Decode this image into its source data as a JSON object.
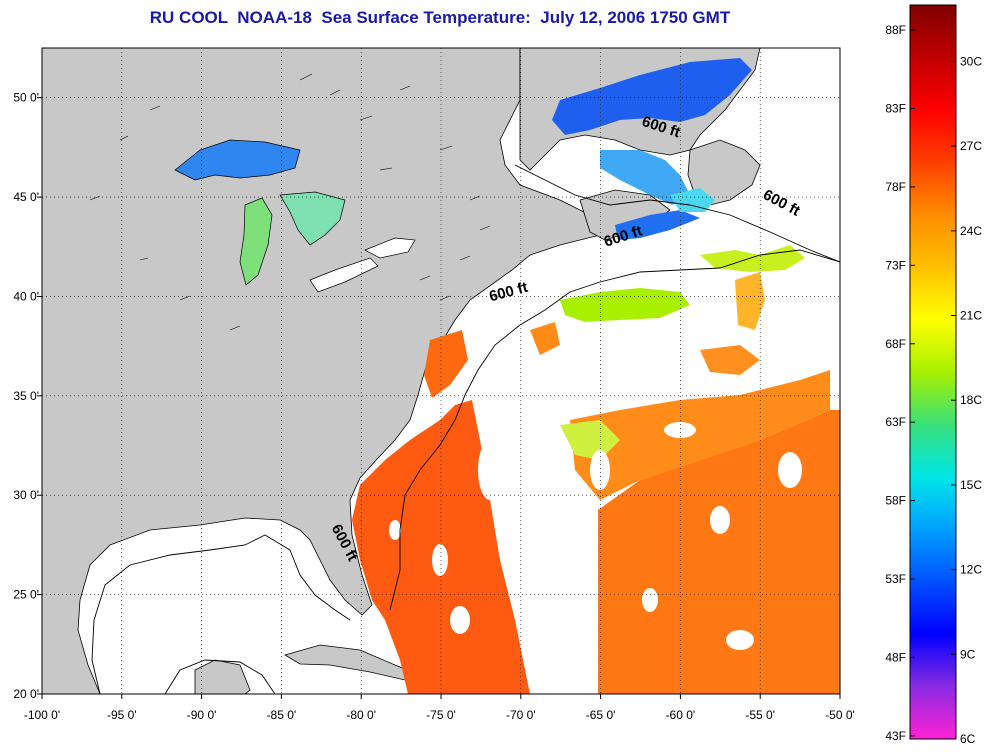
{
  "title": "RU COOL  NOAA-18  Sea Surface Temperature:  July 12, 2006 1750 GMT",
  "map": {
    "lon_range": [
      -100,
      -50
    ],
    "lat_range": [
      20,
      52.5
    ],
    "lon_ticks": [
      {
        "value": -100,
        "label": "-100 0'"
      },
      {
        "value": -95,
        "label": "-95 0'"
      },
      {
        "value": -90,
        "label": "-90 0'"
      },
      {
        "value": -85,
        "label": "-85 0'"
      },
      {
        "value": -80,
        "label": "-80 0'"
      },
      {
        "value": -75,
        "label": "-75 0'"
      },
      {
        "value": -70,
        "label": "-70 0'"
      },
      {
        "value": -65,
        "label": "-65 0'"
      },
      {
        "value": -60,
        "label": "-60 0'"
      },
      {
        "value": -55,
        "label": "-55 0'"
      },
      {
        "value": -50,
        "label": "-50 0'"
      }
    ],
    "lat_ticks": [
      {
        "value": 20,
        "label": "20 0'"
      },
      {
        "value": 25,
        "label": "25 0'"
      },
      {
        "value": 30,
        "label": "30 0'"
      },
      {
        "value": 35,
        "label": "35 0'"
      },
      {
        "value": 40,
        "label": "40 0'"
      },
      {
        "value": 45,
        "label": "45 0'"
      },
      {
        "value": 50,
        "label": "50 0'"
      }
    ],
    "grid": "dotted",
    "land_color": "#c8c8c8",
    "no_data_color": "#ffffff",
    "contour_labels": [
      {
        "text": "600 ft",
        "lon": -61.3,
        "lat": 48.3,
        "rotate": 18
      },
      {
        "text": "600 ft",
        "lon": -53.8,
        "lat": 44.5,
        "rotate": 28
      },
      {
        "text": "600 ft",
        "lon": -63.5,
        "lat": 42.8,
        "rotate": -18
      },
      {
        "text": "600 ft",
        "lon": -70.7,
        "lat": 40.0,
        "rotate": -15
      },
      {
        "text": "600 ft",
        "lon": -81.3,
        "lat": 27.5,
        "rotate": 62
      }
    ]
  },
  "colorbar": {
    "celsius_range": [
      6,
      32
    ],
    "fahrenheit_ticks": [
      "88F",
      "83F",
      "78F",
      "73F",
      "68F",
      "63F",
      "58F",
      "53F",
      "48F",
      "43F"
    ],
    "celsius_ticks": [
      "30C",
      "27C",
      "24C",
      "21C",
      "18C",
      "15C",
      "12C",
      "9C",
      "6C"
    ],
    "colors_bottom_to_top": [
      "#ff22d4",
      "#8a2be2",
      "#0000ff",
      "#0050ff",
      "#00a0ff",
      "#00e6e6",
      "#39e07a",
      "#a8f000",
      "#ffff00",
      "#ffc000",
      "#ff8c00",
      "#ff4000",
      "#ff0000",
      "#c00000",
      "#800000"
    ]
  }
}
